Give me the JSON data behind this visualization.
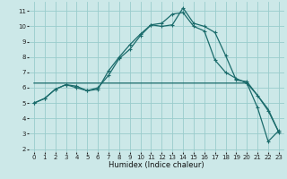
{
  "title": "",
  "xlabel": "Humidex (Indice chaleur)",
  "background_color": "#cce8e8",
  "grid_color": "#99cccc",
  "line_color": "#1a6b6b",
  "xlim": [
    -0.5,
    23.5
  ],
  "ylim": [
    1.8,
    11.6
  ],
  "yticks": [
    2,
    3,
    4,
    5,
    6,
    7,
    8,
    9,
    10,
    11
  ],
  "xticks": [
    0,
    1,
    2,
    3,
    4,
    5,
    6,
    7,
    8,
    9,
    10,
    11,
    12,
    13,
    14,
    15,
    16,
    17,
    18,
    19,
    20,
    21,
    22,
    23
  ],
  "line1_x": [
    0,
    1,
    2,
    3,
    4,
    5,
    6,
    7,
    8,
    9,
    10,
    11,
    12,
    13,
    14,
    15,
    16,
    17,
    18,
    19,
    20,
    21,
    22,
    23
  ],
  "line1_y": [
    5.0,
    5.3,
    5.9,
    6.2,
    6.1,
    5.8,
    5.9,
    7.1,
    8.0,
    8.8,
    9.5,
    10.1,
    10.0,
    10.1,
    11.2,
    10.2,
    10.0,
    9.6,
    8.1,
    6.5,
    6.4,
    5.5,
    4.5,
    3.1
  ],
  "line2_x": [
    0,
    1,
    2,
    3,
    4,
    5,
    6,
    7,
    8,
    9,
    10,
    11,
    12,
    13,
    14,
    15,
    16,
    17,
    18,
    19,
    20,
    21,
    22,
    23
  ],
  "line2_y": [
    5.0,
    5.3,
    5.9,
    6.2,
    6.0,
    5.8,
    6.0,
    6.8,
    7.9,
    8.5,
    9.4,
    10.1,
    10.2,
    10.8,
    10.9,
    10.0,
    9.7,
    7.8,
    7.0,
    6.6,
    6.3,
    4.7,
    2.5,
    3.2
  ],
  "line3_x": [
    0,
    20,
    21,
    22,
    23
  ],
  "line3_y": [
    6.3,
    6.3,
    5.5,
    4.6,
    3.1
  ]
}
